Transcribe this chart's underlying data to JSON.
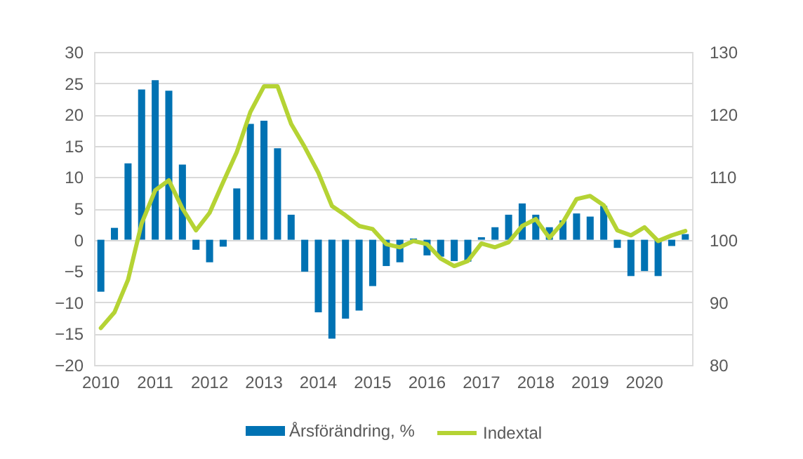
{
  "chart_data": {
    "type": "bar",
    "categories": [
      "2010",
      null,
      null,
      null,
      "2011",
      null,
      null,
      null,
      "2012",
      null,
      null,
      null,
      "2013",
      null,
      null,
      null,
      "2014",
      null,
      null,
      null,
      "2015",
      null,
      null,
      null,
      "2016",
      null,
      null,
      null,
      "2017",
      null,
      null,
      null,
      "2018",
      null,
      null,
      null,
      "2019",
      null,
      null,
      null,
      "2020",
      null,
      null,
      null
    ],
    "series": [
      {
        "name": "Årsförändring, %",
        "color": "#0072B3",
        "values": [
          -8.3,
          1.9,
          12.2,
          24.0,
          25.5,
          23.8,
          12.0,
          -1.6,
          -3.6,
          -1.1,
          8.2,
          18.5,
          19.0,
          14.6,
          4.0,
          -5.1,
          -11.6,
          -15.8,
          -12.6,
          -11.3,
          -7.4,
          -4.2,
          -3.6,
          0.2,
          -2.5,
          -2.7,
          -3.4,
          -3.5,
          0.4,
          2.0,
          4.0,
          5.8,
          4.0,
          2.0,
          3.1,
          4.2,
          3.7,
          5.4,
          -1.3,
          -5.8,
          -5.0,
          -5.8,
          -1.0,
          0.9
        ]
      },
      {
        "name": "Indextal",
        "type": "line",
        "axis": "y2",
        "color": "#B5D334",
        "values": [
          85.9,
          88.4,
          93.6,
          102.6,
          107.9,
          109.5,
          105.0,
          101.5,
          104.3,
          109.2,
          114.0,
          120.4,
          124.5,
          124.5,
          118.5,
          114.8,
          110.7,
          105.4,
          103.9,
          102.2,
          101.7,
          99.3,
          98.8,
          99.8,
          99.3,
          97.0,
          95.8,
          96.6,
          99.4,
          98.8,
          99.6,
          102.2,
          103.3,
          100.3,
          102.8,
          106.5,
          107.0,
          105.5,
          101.5,
          100.7,
          102.0,
          99.8,
          100.7,
          101.4
        ]
      }
    ],
    "ylim": [
      -20,
      30
    ],
    "yticks": [
      -20,
      -15,
      -10,
      -5,
      0,
      5,
      10,
      15,
      20,
      25,
      30
    ],
    "y2lim": [
      80,
      130
    ],
    "y2ticks": [
      80,
      90,
      100,
      110,
      120,
      130
    ],
    "grid": "y",
    "legend": "bottom"
  }
}
